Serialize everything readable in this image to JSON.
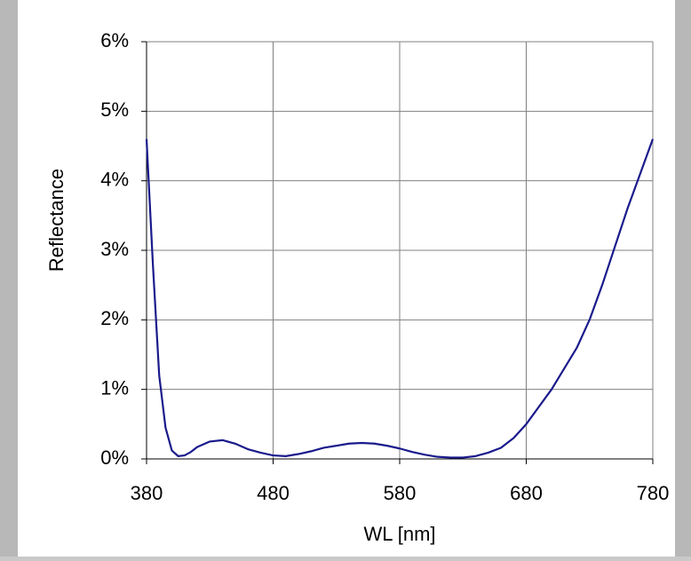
{
  "chart_data": {
    "type": "line",
    "x_label": "WL [nm]",
    "y_label": "Reflectance",
    "x": [
      380,
      385,
      390,
      395,
      400,
      405,
      410,
      415,
      420,
      430,
      440,
      450,
      460,
      470,
      480,
      490,
      500,
      510,
      520,
      530,
      540,
      550,
      560,
      570,
      580,
      590,
      600,
      610,
      620,
      630,
      640,
      650,
      660,
      670,
      680,
      690,
      700,
      710,
      720,
      730,
      740,
      750,
      760,
      770,
      780
    ],
    "series": [
      {
        "color": "#1a1a8c",
        "values": [
          4.6,
          2.8,
          1.2,
          0.45,
          0.12,
          0.04,
          0.05,
          0.1,
          0.17,
          0.25,
          0.27,
          0.22,
          0.14,
          0.09,
          0.05,
          0.04,
          0.07,
          0.11,
          0.16,
          0.19,
          0.22,
          0.23,
          0.22,
          0.19,
          0.15,
          0.1,
          0.06,
          0.03,
          0.02,
          0.02,
          0.04,
          0.09,
          0.16,
          0.3,
          0.5,
          0.75,
          1.0,
          1.3,
          1.6,
          2.0,
          2.5,
          3.05,
          3.6,
          4.1,
          4.6
        ]
      }
    ],
    "xlim": [
      380,
      780
    ],
    "xticks": [
      380,
      480,
      580,
      680,
      780
    ],
    "ylim": [
      0,
      6
    ],
    "yticks": [
      {
        "value": 0,
        "label": "0%"
      },
      {
        "value": 1,
        "label": "1%"
      },
      {
        "value": 2,
        "label": "2%"
      },
      {
        "value": 3,
        "label": "3%"
      },
      {
        "value": 4,
        "label": "4%"
      },
      {
        "value": 5,
        "label": "5%"
      },
      {
        "value": 6,
        "label": "6%"
      }
    ],
    "grid": true
  }
}
